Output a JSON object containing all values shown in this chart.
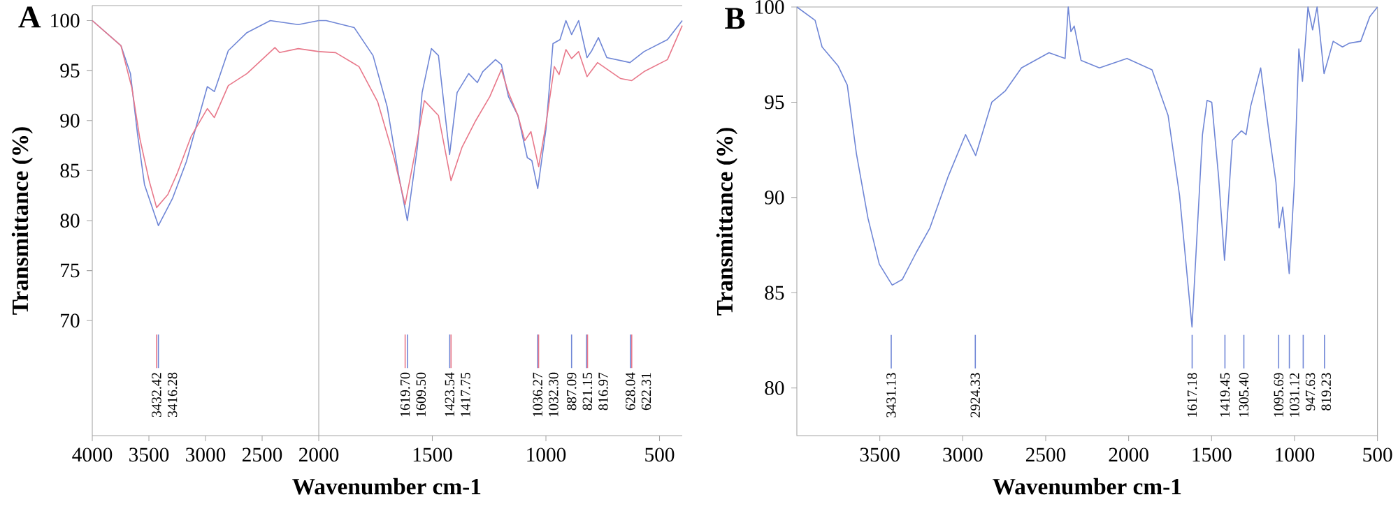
{
  "chart_data": [
    {
      "type": "line",
      "title": "A",
      "ylabel": "Transmittance (%)",
      "xlim": [
        4000,
        2000
      ],
      "ylim": [
        58.5,
        101.5
      ],
      "xticks": [
        4000,
        3500,
        3000,
        2500,
        2000
      ],
      "yticks": [
        70,
        75,
        80,
        85,
        90,
        95,
        100
      ],
      "series": [
        {
          "color": "#6f86d6",
          "x": [
            4000,
            3747,
            3663,
            3601,
            3539,
            3416,
            3292,
            3169,
            2984,
            2922,
            2799,
            2634,
            2428,
            2181,
            2000
          ],
          "values": [
            100,
            97.5,
            94.7,
            88.7,
            83.6,
            79.5,
            82.2,
            85.9,
            93.4,
            92.9,
            97.0,
            98.8,
            100,
            99.6,
            100
          ]
        },
        {
          "color": "#e8788a",
          "x": [
            4000,
            3747,
            3651,
            3580,
            3498,
            3432,
            3333,
            3251,
            3128,
            2984,
            2922,
            2799,
            2634,
            2387,
            2346,
            2181,
            2000
          ],
          "values": [
            100,
            97.5,
            93.3,
            88.2,
            84.0,
            81.3,
            82.6,
            84.7,
            88.4,
            91.2,
            90.3,
            93.5,
            94.7,
            97.3,
            96.8,
            97.2,
            96.9
          ]
        }
      ],
      "ref_lines": [
        {
          "axis": "x",
          "value": 3432.42,
          "label": "3432.42",
          "color": "#e8788a"
        },
        {
          "axis": "x",
          "value": 3416.28,
          "label": "3416.28",
          "color": "#6f86d6"
        }
      ]
    },
    {
      "type": "line",
      "xlabel": "Wavenumber cm-1",
      "xlim": [
        2000,
        400
      ],
      "ylim": [
        58.5,
        101.5
      ],
      "xticks": [
        1500,
        1000,
        500
      ],
      "tick_labels": "x",
      "series": [
        {
          "color": "#6f86d6",
          "x": [
            2000,
            1967,
            1844,
            1761,
            1699,
            1648,
            1610,
            1566,
            1545,
            1504,
            1473,
            1424,
            1391,
            1340,
            1302,
            1278,
            1222,
            1196,
            1165,
            1123,
            1082,
            1062,
            1036,
            1000,
            969,
            938,
            912,
            887,
            856,
            819,
            798,
            769,
            732,
            630,
            568,
            465,
            400
          ],
          "values": [
            100,
            100,
            99.3,
            96.5,
            91.4,
            84.5,
            80.0,
            87.3,
            92.8,
            97.2,
            96.5,
            86.6,
            92.8,
            94.7,
            93.8,
            94.9,
            96.1,
            95.6,
            92.4,
            90.5,
            86.3,
            86.0,
            83.2,
            89.1,
            97.7,
            98.1,
            100,
            98.6,
            100,
            96.3,
            97.0,
            98.3,
            96.3,
            95.8,
            96.9,
            98.1,
            100
          ]
        },
        {
          "color": "#e8788a",
          "x": [
            2000,
            1926,
            1823,
            1741,
            1669,
            1620,
            1576,
            1535,
            1473,
            1418,
            1370,
            1309,
            1247,
            1196,
            1165,
            1123,
            1093,
            1066,
            1032,
            1000,
            963,
            942,
            912,
            887,
            856,
            819,
            773,
            671,
            622,
            568,
            465,
            400
          ],
          "values": [
            96.9,
            96.8,
            95.4,
            91.9,
            86.3,
            81.6,
            86.8,
            92.0,
            90.5,
            84.0,
            87.3,
            90.0,
            92.4,
            95.1,
            92.8,
            90.5,
            88.0,
            88.9,
            85.4,
            89.6,
            95.4,
            94.6,
            97.1,
            96.2,
            96.9,
            94.4,
            95.8,
            94.2,
            94.0,
            94.9,
            96.1,
            99.5
          ]
        }
      ],
      "ref_lines": [
        {
          "axis": "x",
          "value": 1619.7,
          "label": "1619.70",
          "color": "#e8788a"
        },
        {
          "axis": "x",
          "value": 1609.5,
          "label": "1609.50",
          "color": "#6f86d6"
        },
        {
          "axis": "x",
          "value": 1423.54,
          "label": "1423.54",
          "color": "#6f86d6"
        },
        {
          "axis": "x",
          "value": 1417.75,
          "label": "1417.75",
          "color": "#e8788a"
        },
        {
          "axis": "x",
          "value": 1036.27,
          "label": "1036.27",
          "color": "#6f86d6"
        },
        {
          "axis": "x",
          "value": 1032.3,
          "label": "1032.30",
          "color": "#e8788a"
        },
        {
          "axis": "x",
          "value": 887.09,
          "label": "887.09",
          "color": "#6f86d6"
        },
        {
          "axis": "x",
          "value": 821.15,
          "label": "821.15",
          "color": "#6f86d6"
        },
        {
          "axis": "x",
          "value": 816.97,
          "label": "816.97",
          "color": "#e8788a"
        },
        {
          "axis": "x",
          "value": 628.04,
          "label": "628.04",
          "color": "#6f86d6"
        },
        {
          "axis": "x",
          "value": 622.31,
          "label": "622.31",
          "color": "#e8788a"
        }
      ]
    },
    {
      "type": "line",
      "title": "B",
      "xlabel": "Wavenumber cm-1",
      "ylabel": "Transmittance (%)",
      "xlim": [
        4000,
        500
      ],
      "ylim": [
        77.5,
        100
      ],
      "xticks": [
        3500,
        3000,
        2500,
        2000,
        1500,
        1000,
        500
      ],
      "yticks": [
        80,
        85,
        90,
        95,
        100
      ],
      "series": [
        {
          "color": "#6f86d6",
          "x": [
            4000,
            3890,
            3848,
            3751,
            3696,
            3641,
            3571,
            3503,
            3425,
            3364,
            3281,
            3198,
            3088,
            2983,
            2922,
            2825,
            2743,
            2646,
            2480,
            2383,
            2364,
            2348,
            2328,
            2287,
            2176,
            2010,
            1859,
            1762,
            1693,
            1618,
            1555,
            1527,
            1499,
            1458,
            1422,
            1375,
            1320,
            1292,
            1264,
            1204,
            1154,
            1112,
            1093,
            1071,
            1032,
            1002,
            974,
            952,
            919,
            891,
            864,
            822,
            767,
            711,
            670,
            601,
            546,
            500
          ],
          "values": [
            100,
            99.3,
            97.9,
            96.9,
            95.9,
            92.3,
            88.9,
            86.5,
            85.4,
            85.7,
            87.1,
            88.4,
            91.1,
            93.3,
            92.2,
            95.0,
            95.6,
            96.8,
            97.6,
            97.3,
            100,
            98.7,
            99.0,
            97.2,
            96.8,
            97.3,
            96.7,
            94.3,
            90.1,
            83.2,
            93.3,
            95.1,
            95.0,
            91.1,
            86.7,
            93.0,
            93.5,
            93.3,
            94.8,
            96.8,
            93.4,
            90.8,
            88.4,
            89.5,
            86.0,
            90.6,
            97.8,
            96.1,
            100,
            98.8,
            100,
            96.5,
            98.2,
            97.9,
            98.1,
            98.2,
            99.5,
            100
          ]
        }
      ],
      "ref_lines": [
        {
          "axis": "x",
          "value": 3431.13,
          "label": "3431.13",
          "color": "#6f86d6"
        },
        {
          "axis": "x",
          "value": 2924.33,
          "label": "2924.33",
          "color": "#6f86d6"
        },
        {
          "axis": "x",
          "value": 1617.18,
          "label": "1617.18",
          "color": "#6f86d6"
        },
        {
          "axis": "x",
          "value": 1419.45,
          "label": "1419.45",
          "color": "#6f86d6"
        },
        {
          "axis": "x",
          "value": 1305.4,
          "label": "1305.40",
          "color": "#6f86d6"
        },
        {
          "axis": "x",
          "value": 1095.69,
          "label": "1095.69",
          "color": "#6f86d6"
        },
        {
          "axis": "x",
          "value": 1031.12,
          "label": "1031.12",
          "color": "#6f86d6"
        },
        {
          "axis": "x",
          "value": 947.63,
          "label": "947.63",
          "color": "#6f86d6"
        },
        {
          "axis": "x",
          "value": 819.23,
          "label": "819.23",
          "color": "#6f86d6"
        }
      ]
    }
  ]
}
